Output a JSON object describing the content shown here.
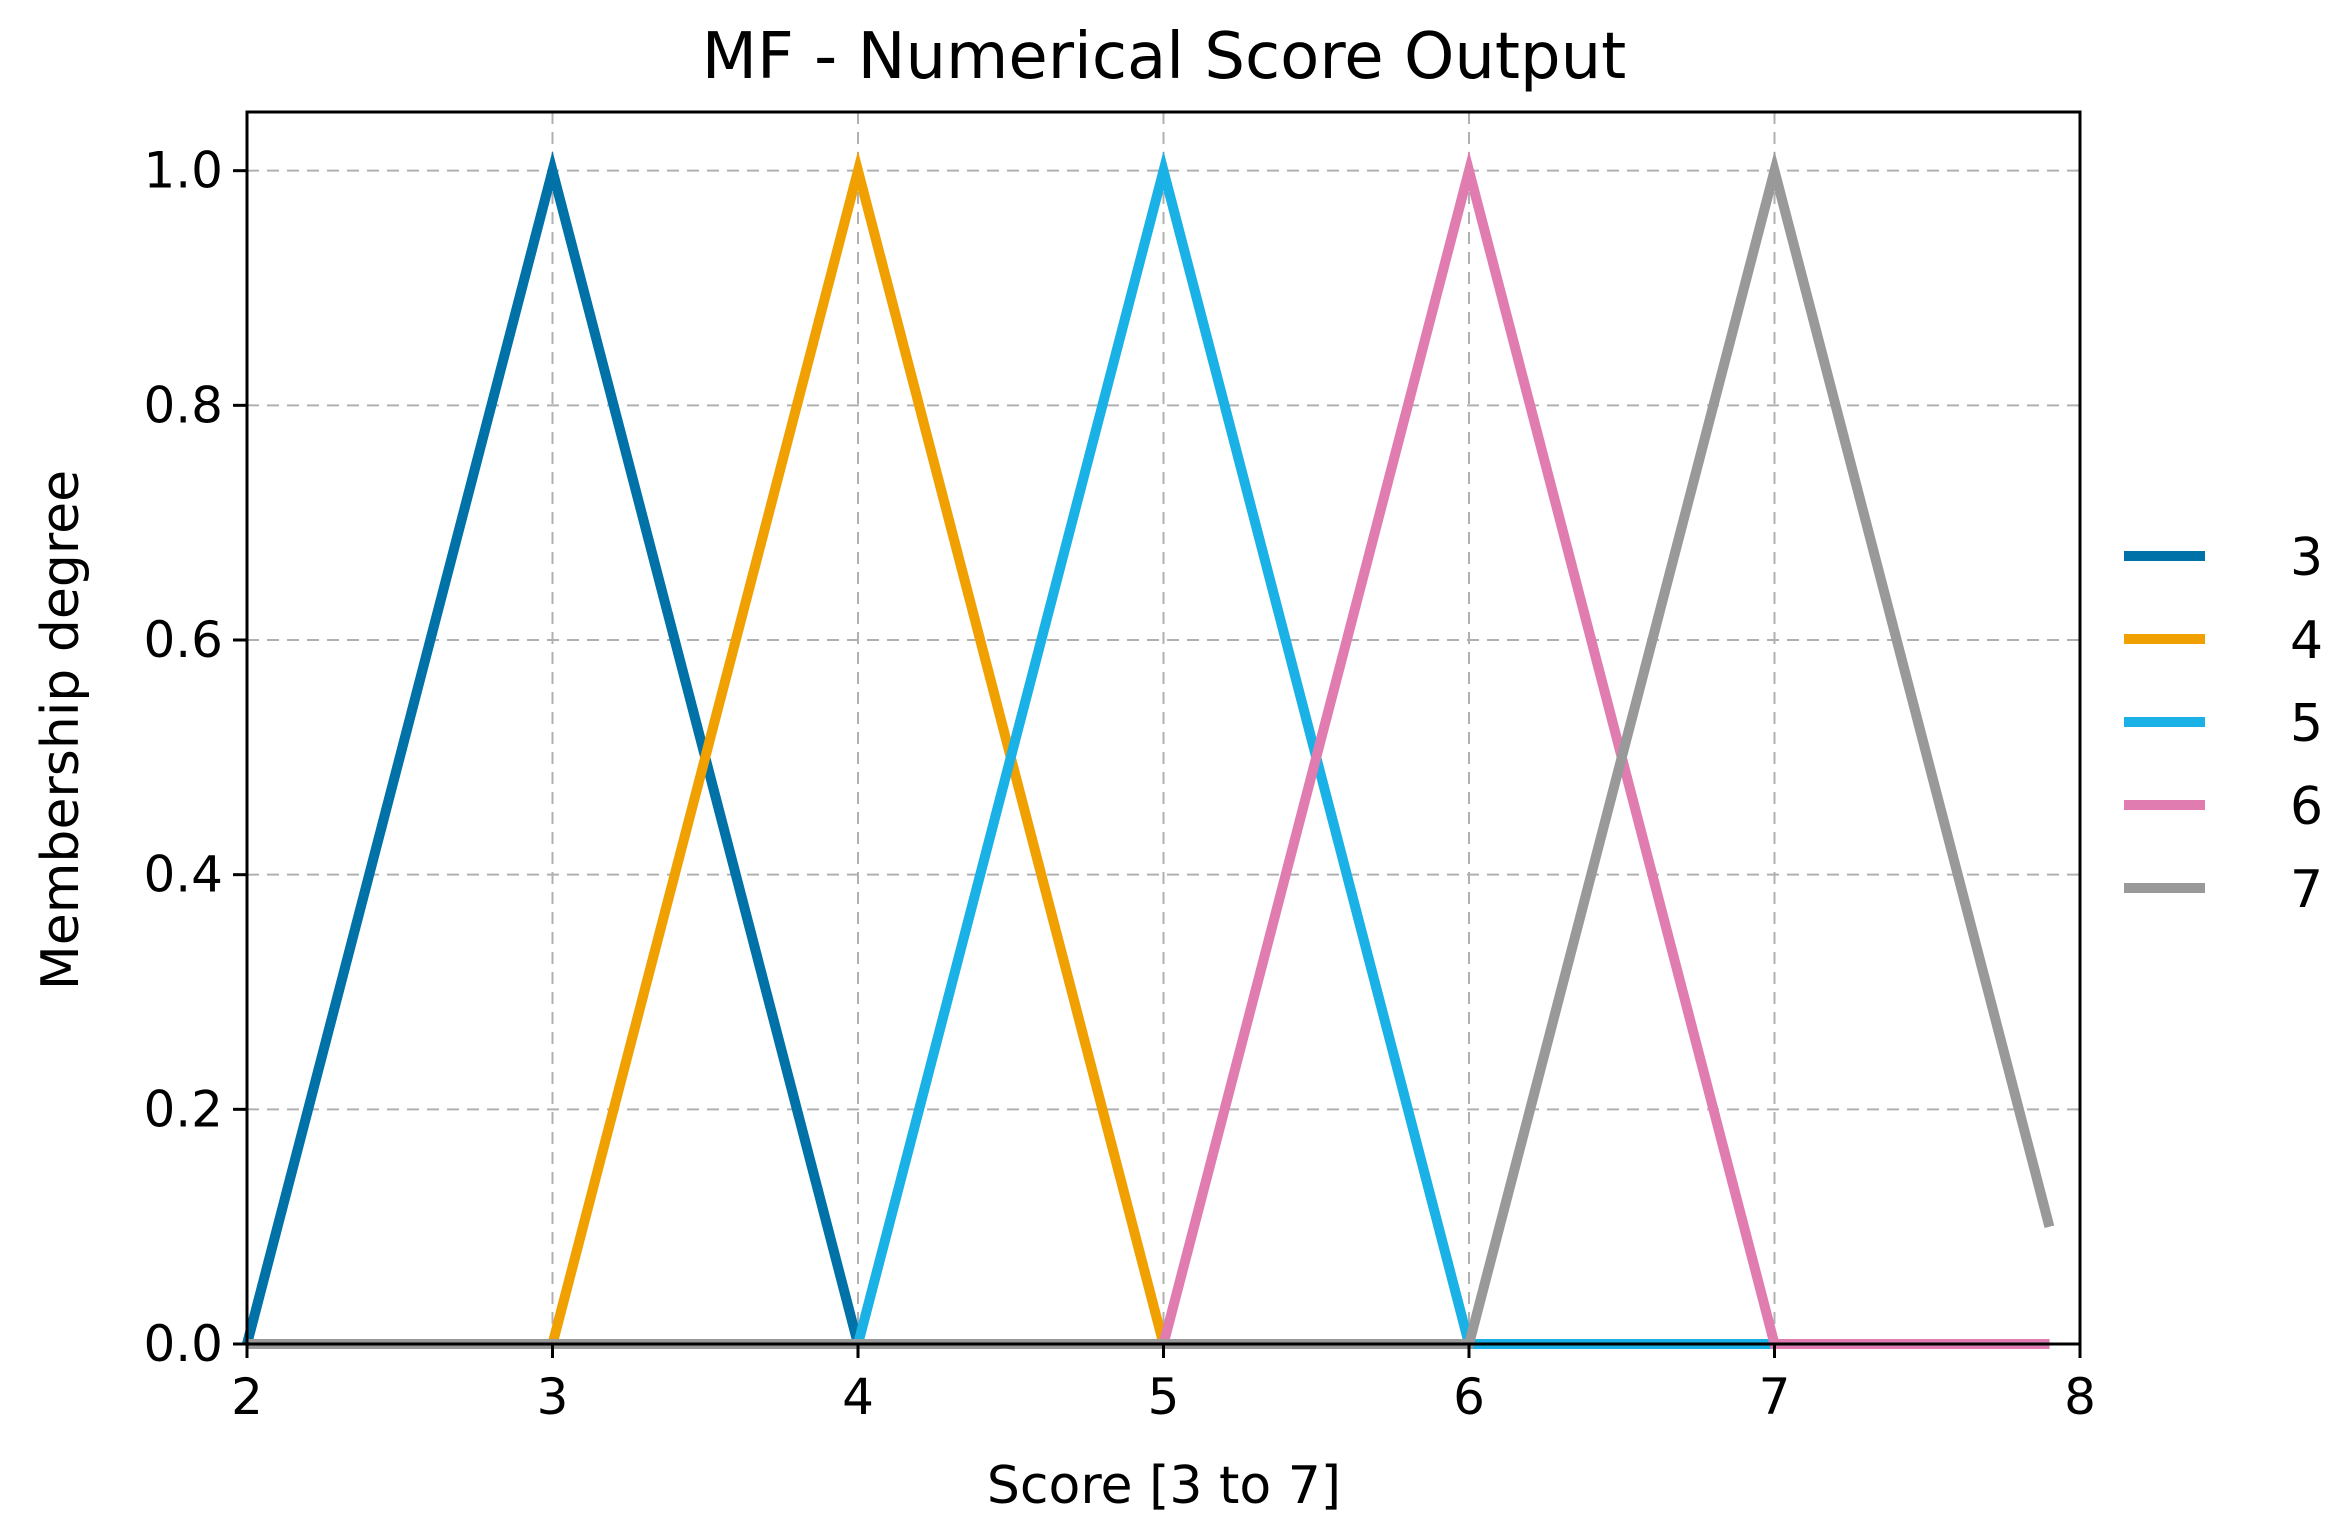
{
  "chart_data": {
    "type": "line",
    "title": "MF - Numerical Score Output",
    "xlabel": "Score [3 to 7]",
    "ylabel": "Membership degree",
    "xlim": [
      2,
      8
    ],
    "ylim": [
      0,
      1.05
    ],
    "x_ticks": [
      "2",
      "3",
      "4",
      "5",
      "6",
      "7",
      "8"
    ],
    "y_ticks": [
      "0.0",
      "0.2",
      "0.4",
      "0.6",
      "0.8",
      "1.0"
    ],
    "grid": true,
    "legend_position": "right",
    "series": [
      {
        "name": "3",
        "color": "#0072a8",
        "points": [
          [
            2,
            0
          ],
          [
            3,
            1
          ],
          [
            4,
            0
          ],
          [
            7.9,
            0
          ]
        ]
      },
      {
        "name": "4",
        "color": "#f0a000",
        "points": [
          [
            2,
            0
          ],
          [
            3,
            0
          ],
          [
            4,
            1
          ],
          [
            5,
            0
          ],
          [
            7.9,
            0
          ]
        ]
      },
      {
        "name": "5",
        "color": "#1ab2e6",
        "points": [
          [
            2,
            0
          ],
          [
            4,
            0
          ],
          [
            5,
            1
          ],
          [
            6,
            0
          ],
          [
            7.9,
            0
          ]
        ]
      },
      {
        "name": "6",
        "color": "#e07cb0",
        "points": [
          [
            2,
            0
          ],
          [
            5,
            0
          ],
          [
            6,
            1
          ],
          [
            7,
            0
          ],
          [
            7.9,
            0
          ]
        ]
      },
      {
        "name": "7",
        "color": "#999999",
        "points": [
          [
            2,
            0
          ],
          [
            6,
            0
          ],
          [
            7,
            1
          ],
          [
            7.9,
            0.1
          ]
        ]
      }
    ]
  }
}
